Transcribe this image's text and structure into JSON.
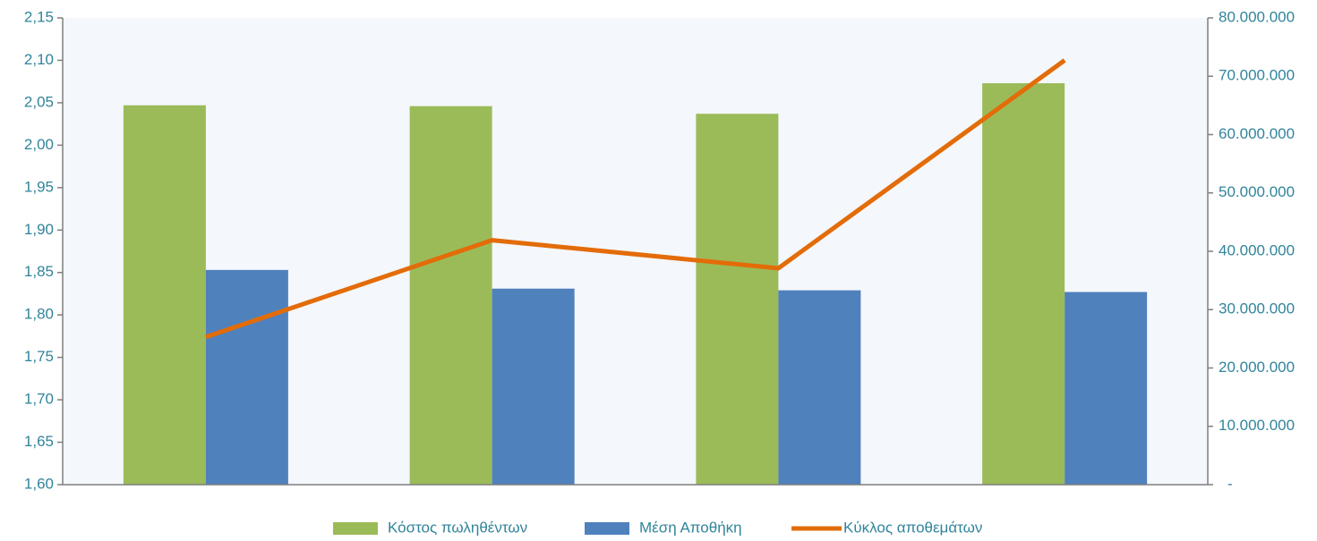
{
  "chart_data": {
    "type": "bar",
    "categories": [
      "",
      "",
      "",
      ""
    ],
    "series": [
      {
        "name": "Κόστος πωληθέντων",
        "kind": "bar",
        "axis": "left",
        "color": "#9BBB59",
        "values": [
          2.047,
          2.046,
          2.037,
          2.073
        ]
      },
      {
        "name": "Μέση Αποθήκη",
        "kind": "bar",
        "axis": "left",
        "color": "#4F81BD",
        "values": [
          1.853,
          1.831,
          1.829,
          1.827
        ]
      },
      {
        "name": "Κύκλος αποθεμάτων",
        "kind": "line",
        "axis": "left",
        "color": "#E36C09",
        "values": [
          1.774,
          1.888,
          1.855,
          2.1
        ]
      }
    ],
    "y_left": {
      "ylim": [
        1.6,
        2.15
      ],
      "tick_labels": [
        "1,60",
        "1,65",
        "1,70",
        "1,75",
        "1,80",
        "1,85",
        "1,90",
        "1,95",
        "2,00",
        "2,05",
        "2,10",
        "2,15"
      ],
      "color": "#31849B"
    },
    "y_right": {
      "ylim": [
        0,
        80000000
      ],
      "tick_labels": [
        "-",
        "10.000.000",
        "20.000.000",
        "30.000.000",
        "40.000.000",
        "50.000.000",
        "60.000.000",
        "70.000.000",
        "80.000.000"
      ],
      "color": "#31849B"
    },
    "title": "",
    "xlabel": "",
    "ylabel": "",
    "grid": false,
    "plot_background": "#F4F7FB",
    "legend": {
      "position": "bottom",
      "text_color": "#31849B",
      "entries": [
        "Κόστος πωληθέντων",
        "Μέση Αποθήκη",
        "Κύκλος αποθεμάτων"
      ]
    }
  }
}
